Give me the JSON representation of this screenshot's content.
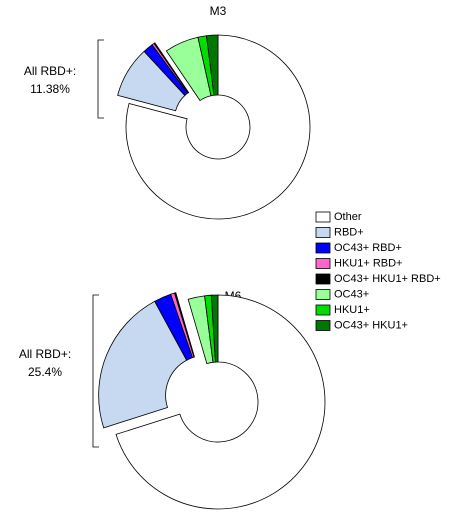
{
  "chart_data": [
    {
      "type": "pie",
      "title": "M3",
      "categories": [
        "Other",
        "RBD+",
        "OC43+ RBD+",
        "HKU1+ RBD+",
        "OC43+ HKU1+ RBD+",
        "OC43+",
        "HKU1+",
        "OC43+ HKU1+"
      ],
      "colors": [
        "#ffffff",
        "#c6d9f1",
        "#0000ff",
        "#ff66cc",
        "#000000",
        "#99ff99",
        "#00dd00",
        "#007700"
      ],
      "values": [
        79.12,
        9.0,
        1.8,
        0.4,
        0.18,
        6.0,
        1.5,
        2.0
      ],
      "annotation": [
        "All RBD+:",
        "11.38%"
      ]
    },
    {
      "type": "pie",
      "title": "M6",
      "values": [
        70.1,
        22.0,
        2.6,
        0.6,
        0.2,
        2.5,
        1.0,
        1.0
      ],
      "annotation": [
        "All RBD+:",
        "25.4%"
      ]
    }
  ]
}
